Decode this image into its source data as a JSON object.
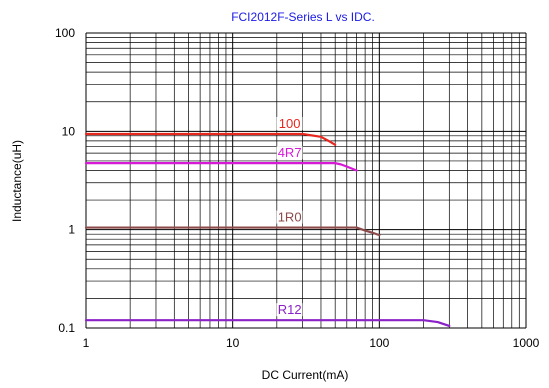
{
  "chart_data": {
    "type": "line",
    "title": "FCI2012F-Series L vs IDC.",
    "xlabel": "DC Current(mA)",
    "ylabel": "Inductance(uH)",
    "xscale": "log",
    "yscale": "log",
    "xlim": [
      1,
      1000
    ],
    "ylim": [
      0.1,
      100
    ],
    "grid": true,
    "x_tick_labels": [
      "1",
      "10",
      "100",
      "1000"
    ],
    "y_tick_labels": [
      "0.1",
      "1",
      "10",
      "100"
    ],
    "colors": {
      "title": "#1a1ae6",
      "grid": "#000000"
    },
    "series": [
      {
        "name": "100",
        "color": "#e8281e",
        "points": [
          [
            1,
            9.4
          ],
          [
            10,
            9.4
          ],
          [
            30,
            9.4
          ],
          [
            40,
            8.8
          ],
          [
            45,
            8.0
          ],
          [
            50,
            7.3
          ]
        ]
      },
      {
        "name": "4R7",
        "color": "#d61ad6",
        "points": [
          [
            1,
            4.75
          ],
          [
            10,
            4.75
          ],
          [
            50,
            4.75
          ],
          [
            55,
            4.6
          ],
          [
            62,
            4.3
          ],
          [
            70,
            4.0
          ]
        ]
      },
      {
        "name": "1R0",
        "color": "#8c4a4a",
        "points": [
          [
            1,
            1.05
          ],
          [
            10,
            1.05
          ],
          [
            70,
            1.05
          ],
          [
            80,
            0.98
          ],
          [
            90,
            0.93
          ],
          [
            100,
            0.88
          ]
        ]
      },
      {
        "name": "R12",
        "color": "#8a22c8",
        "points": [
          [
            1,
            0.12
          ],
          [
            10,
            0.12
          ],
          [
            200,
            0.12
          ],
          [
            250,
            0.115
          ],
          [
            300,
            0.105
          ]
        ]
      }
    ]
  }
}
